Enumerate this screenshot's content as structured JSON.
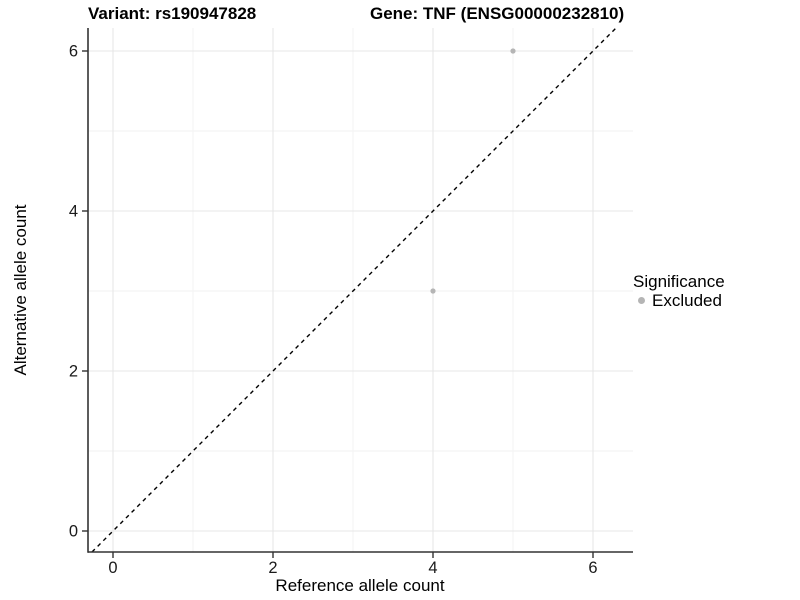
{
  "chart_data": {
    "type": "scatter",
    "titles": {
      "left": "Variant: rs190947828",
      "right": "Gene: TNF (ENSG00000232810)"
    },
    "xlabel": "Reference allele count",
    "ylabel": "Alternative allele count",
    "x_ticks": {
      "values": [
        0,
        2,
        4,
        6
      ],
      "labels": [
        "0",
        "2",
        "4",
        "6"
      ]
    },
    "y_ticks": {
      "values": [
        0,
        2,
        4,
        6
      ],
      "labels": [
        "0",
        "2",
        "4",
        "6"
      ]
    },
    "x_minor": [
      1,
      3,
      5
    ],
    "y_minor": [
      1,
      3,
      5
    ],
    "xlim": [
      -0.31,
      6.5
    ],
    "ylim": [
      -0.26,
      6.29
    ],
    "grid": true,
    "identity_line": {
      "style": "dashed",
      "equation": "y = x",
      "color": "#000000"
    },
    "points": [
      {
        "x": 5,
        "y": 6,
        "series": "Excluded"
      },
      {
        "x": 4,
        "y": 3,
        "series": "Excluded"
      }
    ],
    "legend": {
      "title": "Significance",
      "position": "right",
      "items": [
        {
          "label": "Excluded",
          "color": "#b5b5b5"
        }
      ]
    },
    "colors": {
      "point": "#b5b5b5",
      "axis": "#333333",
      "text": "#1a1a1a",
      "grid_major": "#e7e7e7",
      "grid_minor": "#f2f2f2",
      "background": "#ffffff"
    }
  }
}
